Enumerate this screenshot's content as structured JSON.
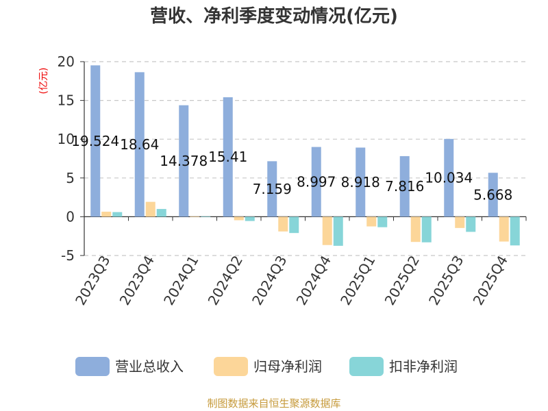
{
  "chart_data": {
    "type": "bar",
    "title": "营收、净利季度变动情况(亿元)",
    "ylabel": "(亿元)",
    "xlabel": "",
    "ylim": [
      -5,
      20
    ],
    "yticks": [
      20,
      15,
      10,
      5,
      0,
      -5
    ],
    "categories": [
      "2023Q3",
      "2023Q4",
      "2024Q1",
      "2024Q2",
      "2024Q3",
      "2024Q4",
      "2025Q1",
      "2025Q2",
      "2025Q3",
      "2025Q4"
    ],
    "series": [
      {
        "name": "营业总收入",
        "color": "#8eaedc",
        "values": [
          19.524,
          18.64,
          14.378,
          15.41,
          7.159,
          8.997,
          8.918,
          7.816,
          10.034,
          5.668
        ]
      },
      {
        "name": "归母净利润",
        "color": "#fcd699",
        "values": [
          0.65,
          1.92,
          0.05,
          -0.45,
          -1.9,
          -3.65,
          -1.25,
          -3.25,
          -1.45,
          -3.2
        ]
      },
      {
        "name": "扣非净利润",
        "color": "#87d5d8",
        "values": [
          0.6,
          1.0,
          0.05,
          -0.55,
          -2.1,
          -3.75,
          -1.35,
          -3.3,
          -1.95,
          -3.7
        ]
      }
    ],
    "data_labels": [
      "19.524",
      "18.64",
      "14.378",
      "15.41",
      "7.159",
      "8.997",
      "8.918",
      "7.816",
      "10.034",
      "5.668"
    ],
    "legend_position": "bottom-center",
    "grid": true
  },
  "footer": {
    "source": "制图数据来自恒生聚源数据库"
  }
}
